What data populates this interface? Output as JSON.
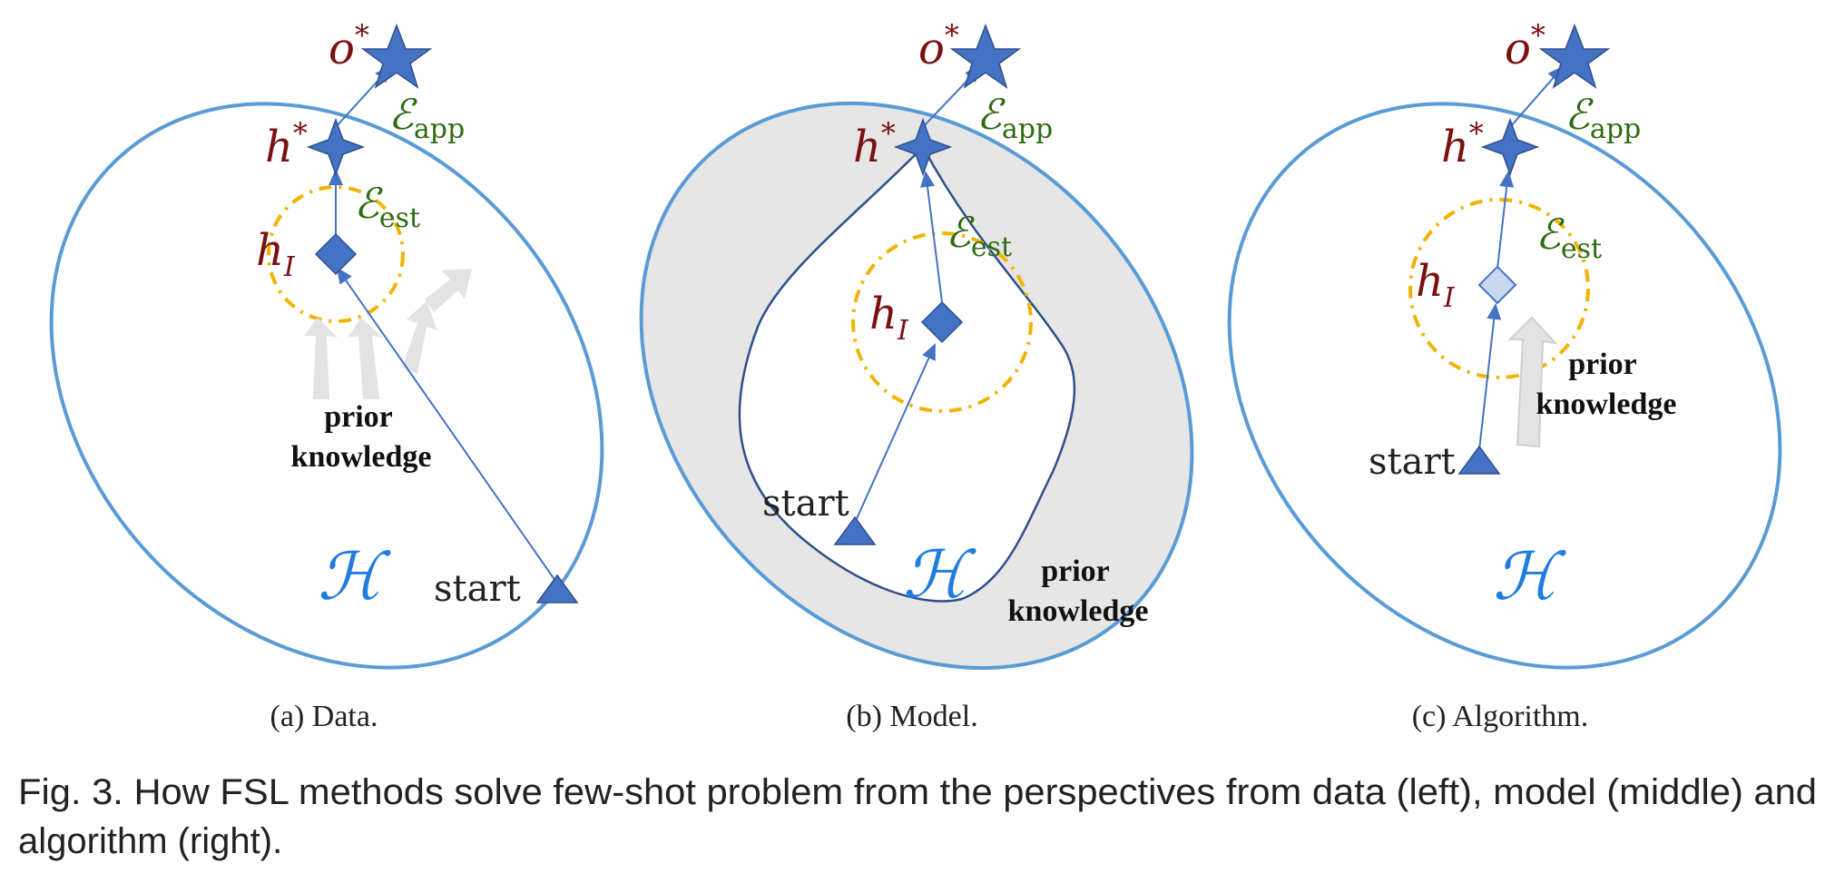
{
  "labels": {
    "o_star": "o",
    "star_sup": "*",
    "h_star": "h",
    "h_I": "h",
    "h_I_sub": "I",
    "E_app": "ℰ",
    "E_app_sub": "app",
    "E_est": "ℰ",
    "E_est_sub": "est",
    "H": "ℋ",
    "start": "start",
    "prior_1": "prior",
    "prior_2": "knowledge"
  },
  "subcaptions": {
    "a": "(a)  Data.",
    "b": "(b)  Model.",
    "c": "(c)  Algorithm."
  },
  "caption": {
    "line1": "Fig. 3.  How FSL methods solve few-shot problem from the perspectives from data (left), model (middle) and",
    "line2": "algorithm (right)."
  },
  "colors": {
    "ellipse": "#5b9bd5",
    "marker": "#4472c4",
    "shaded": "#e6e6e6",
    "dashed_circle": "#f2b300",
    "arrow_gray": "#e3e3e3"
  }
}
